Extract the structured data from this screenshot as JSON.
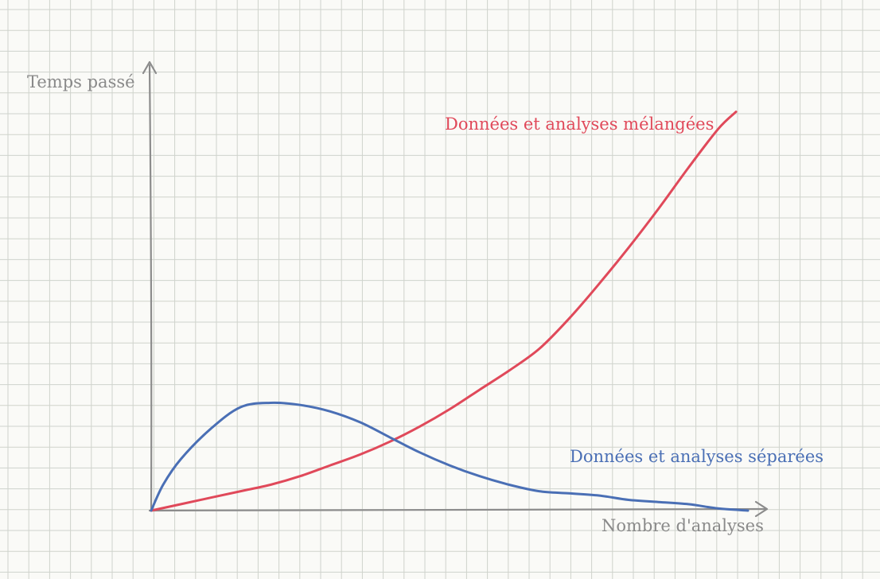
{
  "chart_data": {
    "type": "line",
    "title": "",
    "ylabel": "Temps passé",
    "xlabel": "Nombre d'analyses",
    "xlim": [
      0,
      100
    ],
    "ylim": [
      0,
      100
    ],
    "grid": true,
    "series": [
      {
        "name": "Données et analyses mélangées",
        "color": "#e0495a",
        "x": [
          0,
          5,
          10,
          15,
          20,
          25,
          30,
          35,
          40,
          45,
          50,
          55,
          60,
          65,
          70,
          75,
          80,
          85,
          90,
          95,
          98
        ],
        "y": [
          0,
          1.5,
          3,
          4.5,
          6,
          8,
          10.5,
          13,
          16,
          19.5,
          23.5,
          28,
          32.5,
          37.5,
          44.5,
          52.5,
          61,
          70,
          79.5,
          88.5,
          92.5
        ]
      },
      {
        "name": "Données et analyses séparées",
        "color": "#4a6fb5",
        "x": [
          0,
          2,
          5,
          10,
          15,
          20,
          25,
          30,
          35,
          40,
          45,
          50,
          55,
          60,
          65,
          70,
          75,
          80,
          85,
          90,
          95,
          100
        ],
        "y": [
          0,
          6,
          12,
          19,
          24,
          25,
          24.5,
          23,
          20.5,
          17,
          13.5,
          10.5,
          8,
          6,
          4.5,
          4,
          3.5,
          2.5,
          2,
          1.5,
          0.5,
          0
        ]
      }
    ]
  }
}
